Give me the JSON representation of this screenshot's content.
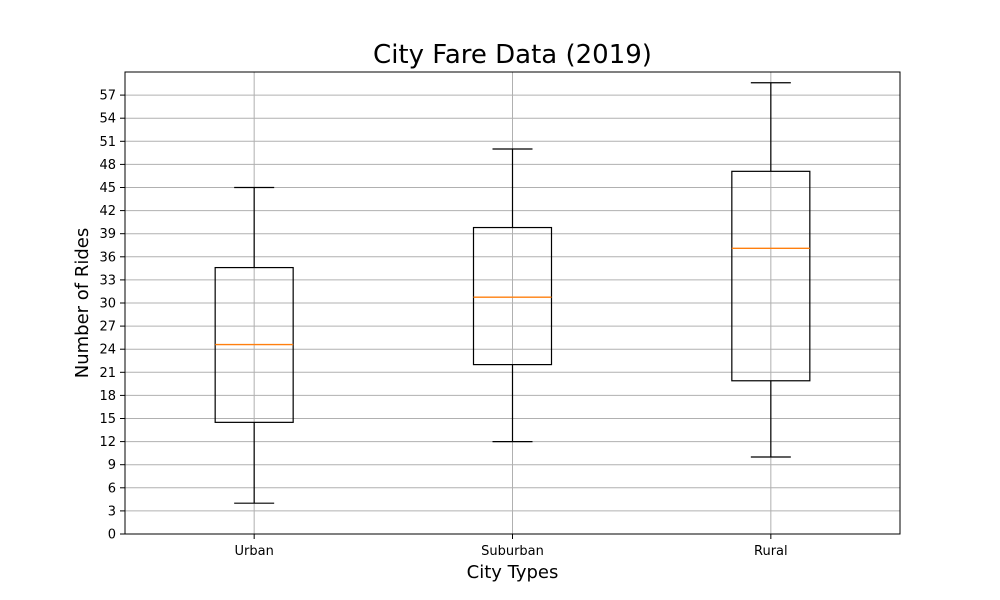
{
  "chart_data": {
    "type": "box",
    "title": "City Fare Data (2019)",
    "xlabel": "City Types",
    "ylabel": "Number of Rides",
    "ylim": [
      0,
      60
    ],
    "yticks": [
      0,
      3,
      6,
      9,
      12,
      15,
      18,
      21,
      24,
      27,
      30,
      33,
      36,
      39,
      42,
      45,
      48,
      51,
      54,
      57
    ],
    "grid": true,
    "categories": [
      "Urban",
      "Suburban",
      "Rural"
    ],
    "boxes": [
      {
        "whisker_low": 4,
        "q1": 14.5,
        "median": 24.6,
        "q3": 34.6,
        "whisker_high": 45
      },
      {
        "whisker_low": 12,
        "q1": 22,
        "median": 30.75,
        "q3": 39.8,
        "whisker_high": 50
      },
      {
        "whisker_low": 10,
        "q1": 19.9,
        "median": 37.1,
        "q3": 47.1,
        "whisker_high": 58.6
      }
    ],
    "colors": {
      "box": "#000000",
      "median": "#ff7f0e",
      "grid": "#b0b0b0"
    }
  }
}
